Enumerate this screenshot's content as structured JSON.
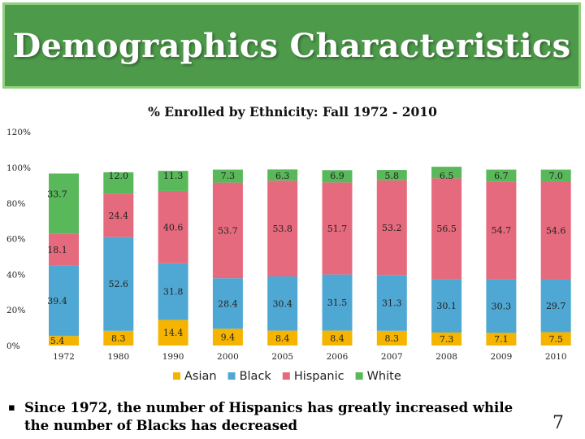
{
  "header": {
    "title": "Demographics Characteristics"
  },
  "chart_data": {
    "type": "bar",
    "stacked": true,
    "title": "% Enrolled by Ethnicity: Fall 1972 - 2010",
    "xlabel": "",
    "ylabel": "",
    "ylim": [
      0,
      120
    ],
    "yticks": [
      "0%",
      "20%",
      "40%",
      "60%",
      "80%",
      "100%",
      "120%"
    ],
    "grid": false,
    "legend_position": "bottom",
    "categories": [
      "1972",
      "1980",
      "1990",
      "2000",
      "2005",
      "2006",
      "2007",
      "2008",
      "2009",
      "2010"
    ],
    "series": [
      {
        "name": "Asian",
        "color": "#f5b400",
        "values": [
          5.4,
          8.3,
          14.4,
          9.4,
          8.4,
          8.4,
          8.3,
          7.3,
          7.1,
          7.5
        ]
      },
      {
        "name": "Black",
        "color": "#4fa8d3",
        "values": [
          39.4,
          52.6,
          31.8,
          28.4,
          30.4,
          31.5,
          31.3,
          30.1,
          30.3,
          29.7
        ]
      },
      {
        "name": "Hispanic",
        "color": "#e66a7e",
        "values": [
          18.1,
          24.4,
          40.6,
          53.7,
          53.8,
          51.7,
          53.2,
          56.5,
          54.7,
          54.6
        ]
      },
      {
        "name": "White",
        "color": "#58b85a",
        "values": [
          33.7,
          12.0,
          11.3,
          7.3,
          6.3,
          6.9,
          5.8,
          6.5,
          6.7,
          7.0
        ]
      }
    ],
    "label_text": [
      [
        "5.4",
        "8.3",
        "14.4",
        "9.4",
        "8.4",
        "8.4",
        "8.3",
        "7.3",
        "7.1",
        "7.5"
      ],
      [
        "39.4",
        "52.6",
        "31.8",
        "28.4",
        "30.4",
        "31.5",
        "31.3",
        "30.1",
        "30.3",
        "29.7"
      ],
      [
        "18.1",
        "24.4",
        "40.6",
        "53.7",
        "53.8",
        "51.7",
        "53.2",
        "56.5",
        "54.7",
        "54.6"
      ],
      [
        "33.7",
        "12.0",
        "11.3",
        "7.3",
        "6.3",
        "6.9",
        "5.8",
        "6.5",
        "6.7",
        "7.0"
      ]
    ]
  },
  "footnote": {
    "bullet": "▪",
    "text": "Since 1972, the number of Hispanics has greatly increased while the number of Blacks has decreased"
  },
  "page_number": "7"
}
